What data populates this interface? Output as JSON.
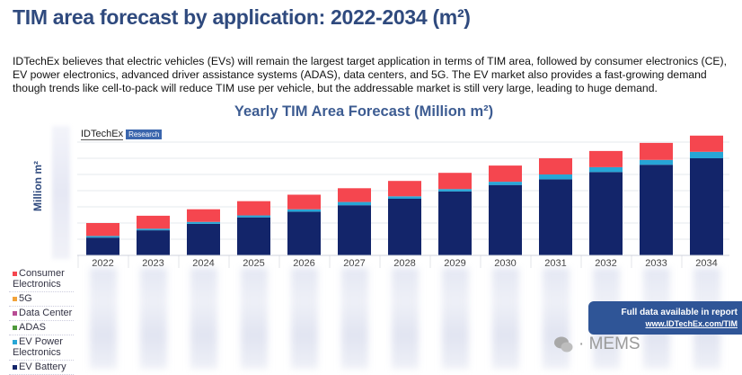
{
  "header": {
    "title": "TIM area forecast by application: 2022-2034 (m²)",
    "description": "IDTechEx believes that electric vehicles (EVs) will remain the largest target application in terms of TIM area, followed by consumer electronics (CE), EV power electronics, advanced driver assistance systems (ADAS), data centers, and 5G. The EV market also provides a fast-growing demand though trends like cell-to-pack will reduce TIM use per vehicle, but the addressable market is still very large, leading to huge demand."
  },
  "logo": {
    "name": "IDTechEx",
    "tag": "Research"
  },
  "chart_data": {
    "type": "bar",
    "stacked": true,
    "title": "Yearly TIM Area Forecast (Million m²)",
    "ylabel": "Million m²",
    "xlabel": "",
    "ylim": [
      0,
      7.5
    ],
    "grid": true,
    "legend_placement": "bottom-left",
    "categories": [
      "2022",
      "2023",
      "2024",
      "2025",
      "2026",
      "2027",
      "2028",
      "2029",
      "2030",
      "2031",
      "2032",
      "2033",
      "2034"
    ],
    "series": [
      {
        "name": "EV Battery",
        "color": "#13256a",
        "values": [
          1.1,
          1.55,
          1.95,
          2.35,
          2.7,
          3.1,
          3.5,
          3.95,
          4.35,
          4.7,
          5.15,
          5.6,
          6.0
        ]
      },
      {
        "name": "EV Power Electronics",
        "color": "#27a6d6",
        "values": [
          0.1,
          0.1,
          0.12,
          0.12,
          0.15,
          0.2,
          0.15,
          0.15,
          0.2,
          0.3,
          0.3,
          0.3,
          0.4
        ]
      },
      {
        "name": "ADAS",
        "color": "#4f9a3b",
        "values": [
          0,
          0,
          0,
          0,
          0,
          0,
          0,
          0,
          0,
          0,
          0,
          0,
          0
        ]
      },
      {
        "name": "Data Center",
        "color": "#b84c94",
        "values": [
          0,
          0,
          0,
          0,
          0,
          0,
          0,
          0,
          0,
          0,
          0,
          0,
          0
        ]
      },
      {
        "name": "5G",
        "color": "#f2a23a",
        "values": [
          0,
          0,
          0,
          0,
          0,
          0,
          0,
          0,
          0,
          0,
          0,
          0,
          0
        ]
      },
      {
        "name": "Consumer Electronics",
        "color": "#f5464f",
        "values": [
          0.8,
          0.8,
          0.78,
          0.88,
          0.9,
          0.85,
          0.95,
          1.0,
          1.0,
          1.0,
          1.0,
          1.05,
          1.0
        ]
      }
    ]
  },
  "legend_rows": [
    {
      "label": "Consumer Electronics",
      "color": "#f5464f"
    },
    {
      "label": "5G",
      "color": "#f2a23a"
    },
    {
      "label": "Data Center",
      "color": "#b84c94"
    },
    {
      "label": "ADAS",
      "color": "#4f9a3b"
    },
    {
      "label": "EV Power Electronics",
      "color": "#27a6d6"
    },
    {
      "label": "EV Battery",
      "color": "#13256a"
    }
  ],
  "report_box": {
    "text": "Full data available in report",
    "link": "www.IDTechEx.com/TIM"
  },
  "watermark": "公众号 · MEMS"
}
